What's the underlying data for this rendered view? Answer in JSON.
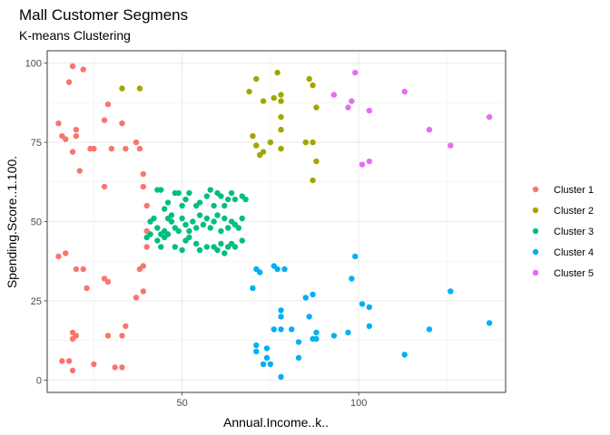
{
  "chart_data": {
    "type": "scatter",
    "title": "Mall Customer Segmens",
    "subtitle": "K-means Clustering",
    "xlabel": "Annual.Income..k..",
    "ylabel": "Spending.Score..1.100.",
    "xlim": [
      11.8,
      141.6
    ],
    "ylim": [
      -3.9,
      103.9
    ],
    "xticks": [
      50,
      100
    ],
    "yticks": [
      0,
      25,
      50,
      75,
      100
    ],
    "grid": true,
    "legend_position": "right",
    "series": [
      {
        "name": "Cluster 1",
        "color": "#F8766D",
        "points": [
          [
            19,
            99
          ],
          [
            22,
            98
          ],
          [
            18,
            94
          ],
          [
            15,
            81
          ],
          [
            16,
            77
          ],
          [
            17,
            76
          ],
          [
            20,
            79
          ],
          [
            20,
            77
          ],
          [
            19,
            72
          ],
          [
            24,
            73
          ],
          [
            25,
            73
          ],
          [
            29,
            87
          ],
          [
            28,
            82
          ],
          [
            33,
            81
          ],
          [
            30,
            73
          ],
          [
            34,
            73
          ],
          [
            37,
            75
          ],
          [
            38,
            73
          ],
          [
            21,
            66
          ],
          [
            28,
            61
          ],
          [
            39,
            65
          ],
          [
            39,
            61
          ],
          [
            40,
            55
          ],
          [
            40,
            47
          ],
          [
            40,
            42
          ],
          [
            39,
            36
          ],
          [
            38,
            35
          ],
          [
            37,
            26
          ],
          [
            39,
            28
          ],
          [
            15,
            39
          ],
          [
            17,
            40
          ],
          [
            20,
            35
          ],
          [
            22,
            35
          ],
          [
            23,
            29
          ],
          [
            28,
            32
          ],
          [
            29,
            31
          ],
          [
            33,
            14
          ],
          [
            34,
            17
          ],
          [
            19,
            15
          ],
          [
            20,
            14
          ],
          [
            19,
            13
          ],
          [
            16,
            6
          ],
          [
            18,
            6
          ],
          [
            19,
            3
          ],
          [
            25,
            5
          ],
          [
            29,
            14
          ],
          [
            31,
            4
          ],
          [
            33,
            4
          ]
        ]
      },
      {
        "name": "Cluster 2",
        "color": "#A3A500",
        "points": [
          [
            33,
            92
          ],
          [
            38,
            92
          ],
          [
            71,
            95
          ],
          [
            77,
            97
          ],
          [
            69,
            91
          ],
          [
            73,
            88
          ],
          [
            76,
            89
          ],
          [
            78,
            90
          ],
          [
            78,
            88
          ],
          [
            86,
            95
          ],
          [
            87,
            93
          ],
          [
            78,
            83
          ],
          [
            88,
            86
          ],
          [
            78,
            79
          ],
          [
            75,
            75
          ],
          [
            70,
            77
          ],
          [
            71,
            74
          ],
          [
            72,
            71
          ],
          [
            73,
            72
          ],
          [
            78,
            73
          ],
          [
            85,
            75
          ],
          [
            87,
            75
          ],
          [
            88,
            69
          ],
          [
            87,
            63
          ]
        ]
      },
      {
        "name": "Cluster 3",
        "color": "#00BF7D",
        "points": [
          [
            43,
            60
          ],
          [
            44,
            60
          ],
          [
            45,
            54
          ],
          [
            46,
            56
          ],
          [
            47,
            52
          ],
          [
            48,
            59
          ],
          [
            49,
            59
          ],
          [
            50,
            55
          ],
          [
            51,
            57
          ],
          [
            52,
            59
          ],
          [
            54,
            55
          ],
          [
            55,
            56
          ],
          [
            57,
            58
          ],
          [
            58,
            60
          ],
          [
            59,
            55
          ],
          [
            60,
            59
          ],
          [
            61,
            58
          ],
          [
            62,
            55
          ],
          [
            63,
            57
          ],
          [
            64,
            59
          ],
          [
            65,
            57
          ],
          [
            67,
            58
          ],
          [
            68,
            57
          ],
          [
            41,
            50
          ],
          [
            42,
            51
          ],
          [
            43,
            48
          ],
          [
            44,
            46
          ],
          [
            45,
            47
          ],
          [
            46,
            51
          ],
          [
            47,
            50
          ],
          [
            48,
            48
          ],
          [
            49,
            47
          ],
          [
            50,
            51
          ],
          [
            51,
            49
          ],
          [
            52,
            47
          ],
          [
            53,
            50
          ],
          [
            54,
            48
          ],
          [
            55,
            52
          ],
          [
            56,
            49
          ],
          [
            57,
            51
          ],
          [
            58,
            48
          ],
          [
            59,
            50
          ],
          [
            60,
            52
          ],
          [
            61,
            47
          ],
          [
            62,
            51
          ],
          [
            63,
            48
          ],
          [
            64,
            50
          ],
          [
            65,
            49
          ],
          [
            66,
            48
          ],
          [
            67,
            51
          ],
          [
            40,
            45
          ],
          [
            41,
            46
          ],
          [
            43,
            44
          ],
          [
            44,
            42
          ],
          [
            45,
            45
          ],
          [
            46,
            46
          ],
          [
            48,
            42
          ],
          [
            50,
            41
          ],
          [
            51,
            44
          ],
          [
            52,
            45
          ],
          [
            54,
            43
          ],
          [
            55,
            41
          ],
          [
            57,
            42
          ],
          [
            59,
            42
          ],
          [
            60,
            41
          ],
          [
            61,
            43
          ],
          [
            62,
            40
          ],
          [
            63,
            42
          ],
          [
            64,
            43
          ],
          [
            65,
            42
          ],
          [
            67,
            44
          ]
        ]
      },
      {
        "name": "Cluster 4",
        "color": "#00B0F6",
        "points": [
          [
            70,
            29
          ],
          [
            71,
            35
          ],
          [
            72,
            34
          ],
          [
            76,
            36
          ],
          [
            77,
            35
          ],
          [
            79,
            35
          ],
          [
            78,
            22
          ],
          [
            78,
            20
          ],
          [
            78,
            16
          ],
          [
            86,
            20
          ],
          [
            85,
            26
          ],
          [
            87,
            27
          ],
          [
            98,
            32
          ],
          [
            99,
            39
          ],
          [
            101,
            24
          ],
          [
            103,
            23
          ],
          [
            103,
            17
          ],
          [
            126,
            28
          ],
          [
            137,
            18
          ],
          [
            120,
            16
          ],
          [
            113,
            8
          ],
          [
            93,
            14
          ],
          [
            97,
            15
          ],
          [
            88,
            15
          ],
          [
            88,
            13
          ],
          [
            87,
            13
          ],
          [
            81,
            16
          ],
          [
            76,
            16
          ],
          [
            71,
            11
          ],
          [
            71,
            9
          ],
          [
            73,
            5
          ],
          [
            74,
            7
          ],
          [
            74,
            10
          ],
          [
            75,
            5
          ],
          [
            78,
            1
          ],
          [
            83,
            12
          ],
          [
            83,
            7
          ]
        ]
      },
      {
        "name": "Cluster 5",
        "color": "#E76BF3",
        "points": [
          [
            99,
            97
          ],
          [
            93,
            90
          ],
          [
            97,
            86
          ],
          [
            98,
            88
          ],
          [
            103,
            85
          ],
          [
            113,
            91
          ],
          [
            120,
            79
          ],
          [
            126,
            74
          ],
          [
            137,
            83
          ],
          [
            101,
            68
          ],
          [
            103,
            69
          ]
        ]
      }
    ]
  }
}
